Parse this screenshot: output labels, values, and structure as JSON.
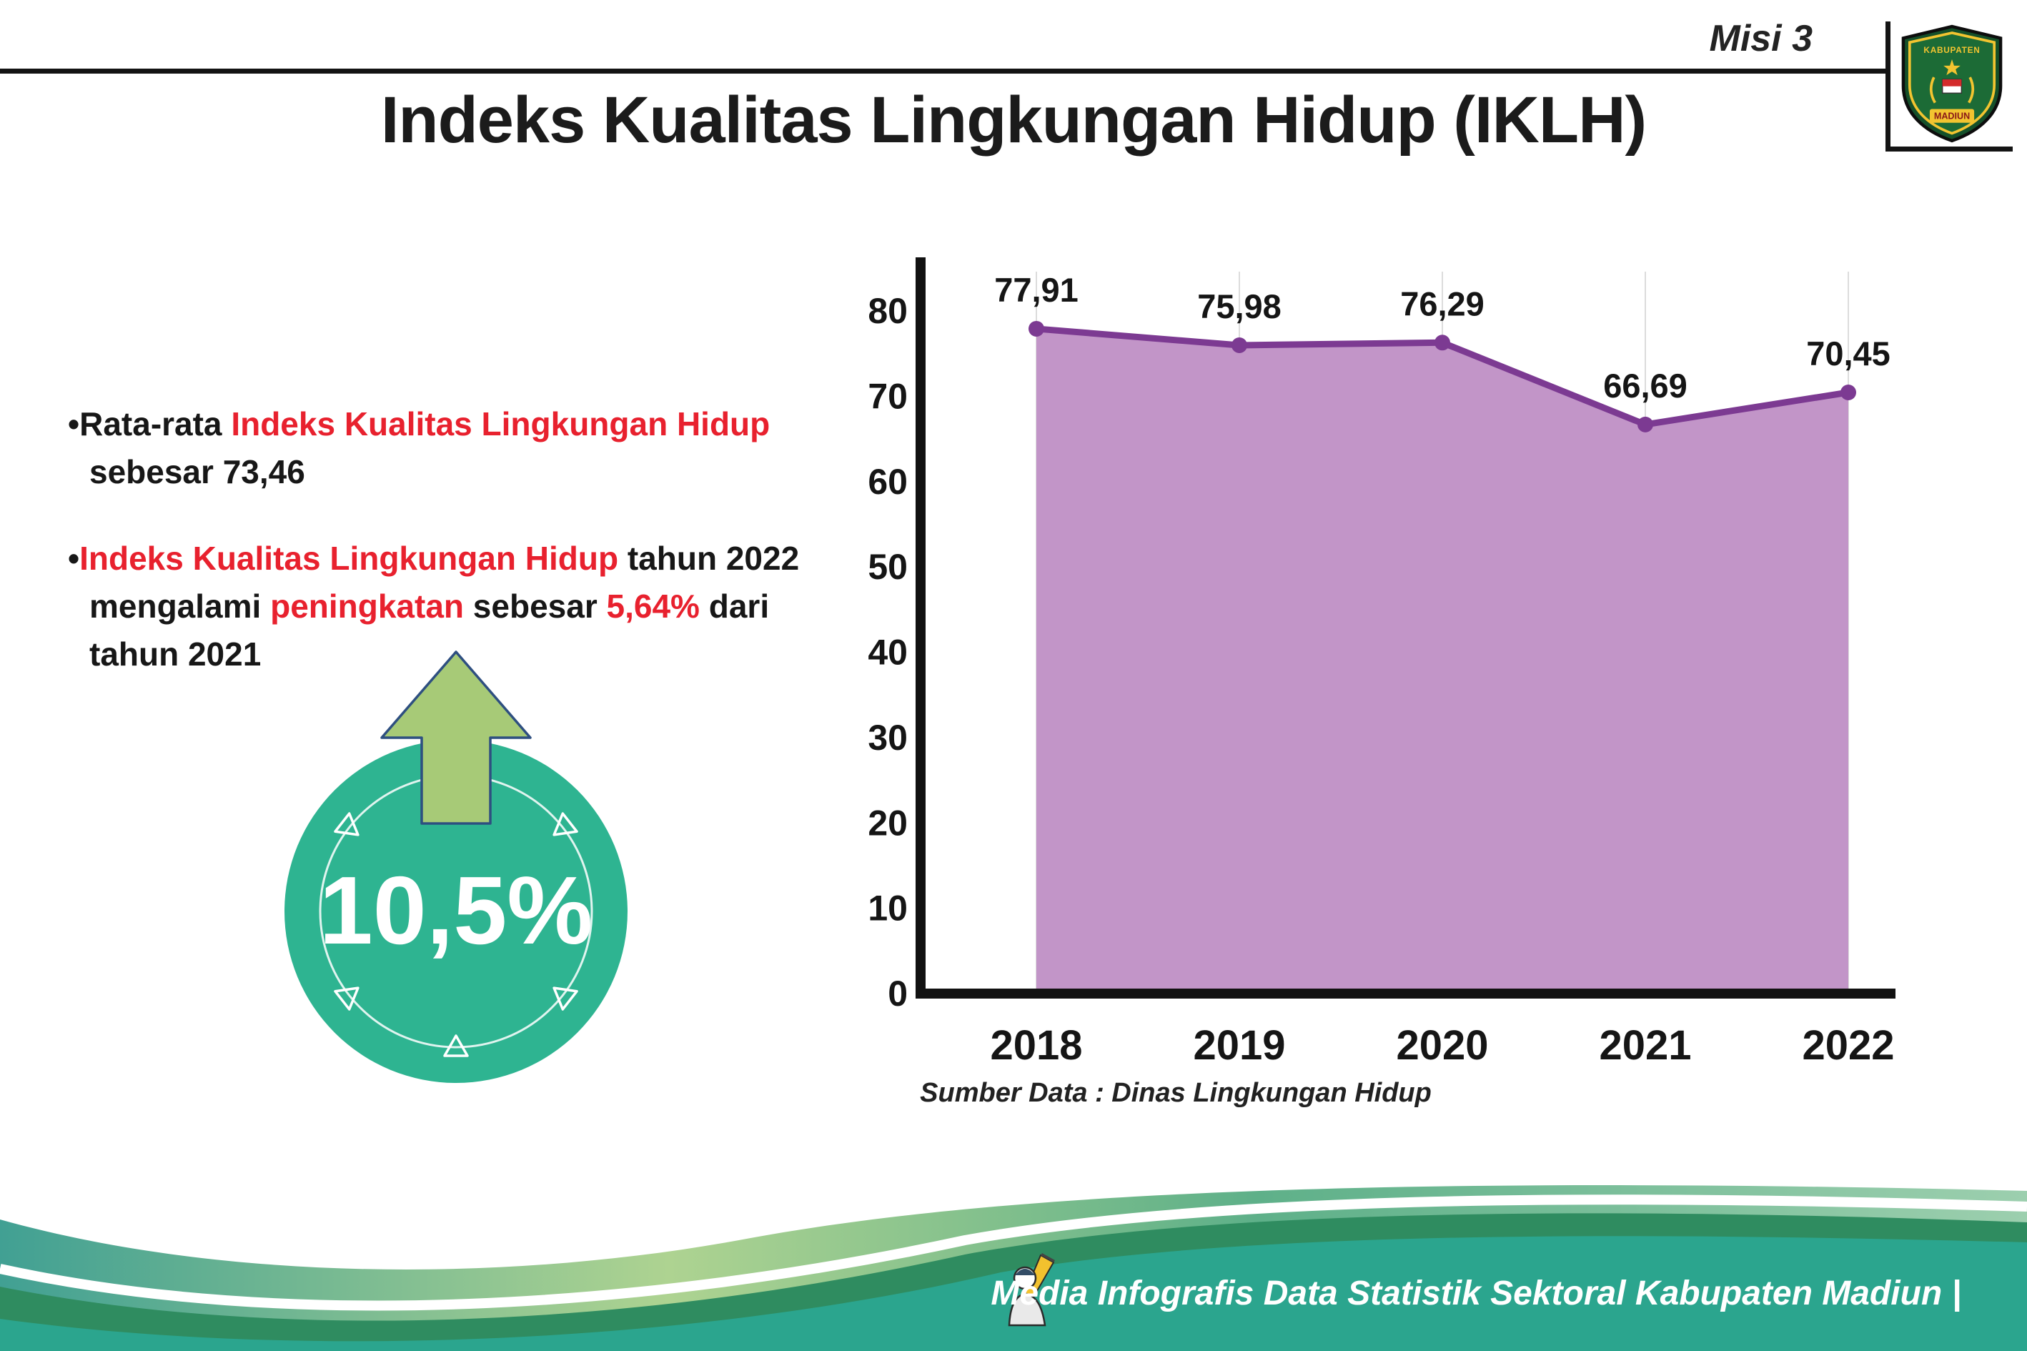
{
  "header": {
    "misi_label": "Misi 3",
    "title": "Indeks Kualitas Lingkungan Hidup (IKLH)"
  },
  "logo": {
    "top_text": "KABUPATEN",
    "bottom_text": "MADIUN"
  },
  "bullets": {
    "marker": "•",
    "b1": {
      "s1": "Rata-rata ",
      "s2": "Indeks Kualitas Lingkungan Hidup",
      "s3": " sebesar 73,46"
    },
    "b2": {
      "s1": "Indeks Kualitas Lingkungan Hidup",
      "s2": " tahun 2022 mengalami ",
      "s3": "peningkatan",
      "s4": " sebesar ",
      "s5": "5,64%",
      "s6": " dari tahun 2021"
    }
  },
  "badge": {
    "value": "10,5%"
  },
  "chart_data": {
    "type": "area",
    "title": "Indeks Kualitas Lingkungan Hidup (IKLH)",
    "categories": [
      "2018",
      "2019",
      "2020",
      "2021",
      "2022"
    ],
    "values": [
      77.91,
      75.98,
      76.29,
      66.69,
      70.45
    ],
    "point_labels": [
      "77,91",
      "75,98",
      "76,29",
      "66,69",
      "70,45"
    ],
    "ylim": [
      0,
      80
    ],
    "yticks": [
      0,
      10,
      20,
      30,
      40,
      50,
      60,
      70,
      80
    ],
    "grid": "vertical-light",
    "legend": "none",
    "line_color": "#7c3a92",
    "fill_color": "#c295c8",
    "source": "Sumber Data : Dinas Lingkungan Hidup"
  },
  "footer": {
    "credit": "Media Infografis Data Statistik Sektoral Kabupaten Madiun |"
  },
  "colors": {
    "accent_red": "#e8212e",
    "badge_green": "#2eb491",
    "arrow_green": "#a7ca77",
    "footer_teal": "#2ba58e"
  }
}
